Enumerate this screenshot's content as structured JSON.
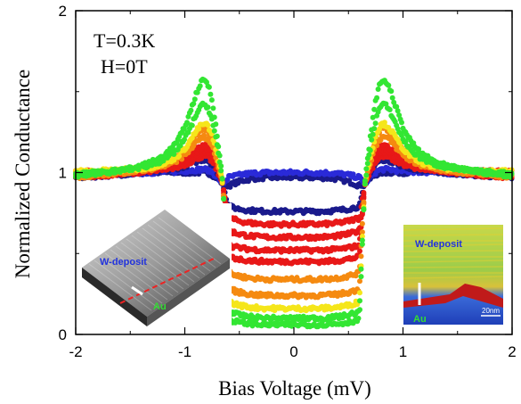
{
  "chart_data": {
    "type": "scatter",
    "title": "",
    "xlabel": "Bias Voltage (mV)",
    "ylabel": "Normalized Conductance",
    "xlim": [
      -2,
      2
    ],
    "ylim": [
      0,
      2
    ],
    "x_ticks": [
      "-2",
      "-1",
      "0",
      "1",
      "2"
    ],
    "y_ticks": [
      "0",
      "1",
      "2"
    ],
    "annotations": [
      "T=0.3K",
      "H=0T"
    ],
    "grid": false,
    "legend": "none",
    "colors": {
      "navy": "#1a1a8c",
      "blue": "#2a2ad8",
      "red": "#e81818",
      "orange": "#f58a10",
      "yellow": "#f5e61a",
      "green": "#33e633"
    },
    "curve_shape": {
      "x_range": [
        -2,
        2
      ],
      "gap_edge_mV": 0.65,
      "coherence_peak_mV": 0.82,
      "point_spacing_mV": 0.012
    },
    "series": [
      {
        "color": "navy",
        "center": 0.92,
        "peak": 1.0,
        "bottom": 0.97
      },
      {
        "color": "blue",
        "center": 0.97,
        "peak": 1.02,
        "bottom": 1.0
      },
      {
        "color": "navy",
        "center": 0.79,
        "peak": 1.08,
        "bottom": 0.76
      },
      {
        "color": "red",
        "center": 0.72,
        "peak": 1.1,
        "bottom": 0.68
      },
      {
        "color": "red",
        "center": 0.64,
        "peak": 1.13,
        "bottom": 0.6
      },
      {
        "color": "red",
        "center": 0.55,
        "peak": 1.15,
        "bottom": 0.52
      },
      {
        "color": "red",
        "center": 0.48,
        "peak": 1.17,
        "bottom": 0.45
      },
      {
        "color": "orange",
        "center": 0.38,
        "peak": 1.22,
        "bottom": 0.34
      },
      {
        "color": "orange",
        "center": 0.28,
        "peak": 1.27,
        "bottom": 0.24
      },
      {
        "color": "yellow",
        "center": 0.2,
        "peak": 1.3,
        "bottom": 0.16
      },
      {
        "color": "green",
        "center": 0.14,
        "peak": 1.42,
        "bottom": 0.1
      },
      {
        "color": "green",
        "center": 0.09,
        "peak": 1.57,
        "bottom": 0.06
      }
    ],
    "insets": [
      {
        "labels": [
          "W-deposit",
          "Au"
        ]
      },
      {
        "labels": [
          "W-deposit",
          "Au",
          "20nm"
        ]
      }
    ]
  }
}
